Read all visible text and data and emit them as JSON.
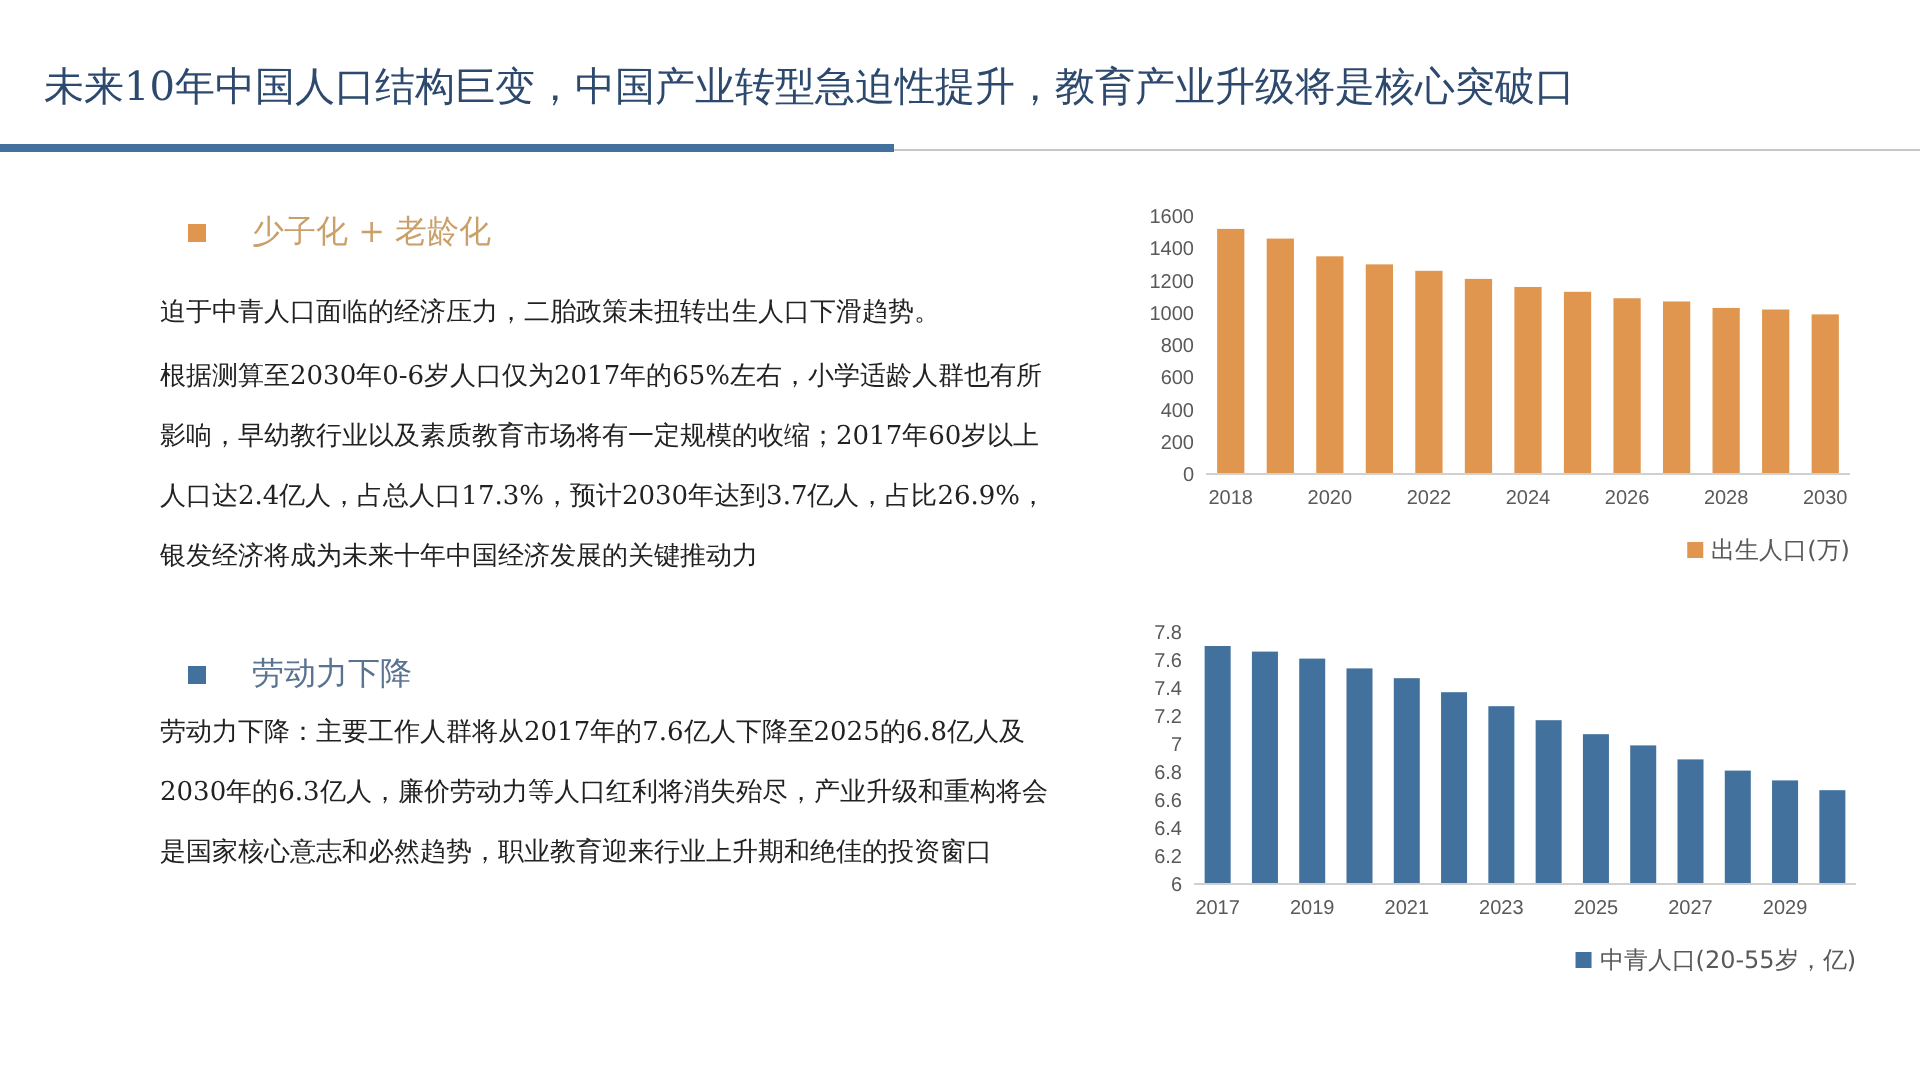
{
  "chart_data": [
    {
      "type": "bar",
      "title": "未来10年中国人口结构巨变，中国产业转型急迫性提升，教育产业升级将是核心突破口",
      "annotations": [
        "少子化 + 老龄化",
        "迫于中青人口面临的经济压力，二胎政策未扭转出生人口下滑趋势。",
        "根据测算至2030年0-6岁人口仅为2017年的65%左右，小学适龄人群也有所影响，早幼教行业以及素质教育市场将有一定规模的收缩；2017年60岁以上人口达2.4亿人，占总人口17.3%，预计2030年达到3.7亿人，占比26.9%，银发经济将成为未来十年中国经济发展的关键推动力"
      ],
      "categories": [
        "2018",
        null,
        "2020",
        null,
        "2022",
        null,
        "2024",
        null,
        "2026",
        null,
        "2028",
        null,
        "2030"
      ],
      "series": [
        {
          "name": "出生人口(万)",
          "color": "#e0964e",
          "values": [
            1520,
            1460,
            1350,
            1300,
            1260,
            1210,
            1160,
            1130,
            1090,
            1070,
            1030,
            1020,
            990
          ]
        }
      ],
      "ylim": [
        0,
        1600
      ],
      "yticks": [
        0,
        200,
        400,
        600,
        800,
        1000,
        1200,
        1400,
        1600
      ],
      "legend": "bottom right"
    },
    {
      "type": "bar",
      "annotations": [
        "劳动力下降",
        "劳动力下降：主要工作人群将从2017年的7.6亿人下降至2025的6.8亿人及2030年的6.3亿人，廉价劳动力等人口红利将消失殆尽，产业升级和重构将会是国家核心意志和必然趋势，职业教育迎来行业上升期和绝佳的投资窗口"
      ],
      "categories": [
        "2017",
        null,
        "2019",
        null,
        "2021",
        null,
        "2023",
        null,
        "2025",
        null,
        "2027",
        null,
        "2029",
        null
      ],
      "series": [
        {
          "name": "中青人口(20-55岁，亿)",
          "color": "#41719c",
          "values": [
            7.7,
            7.66,
            7.61,
            7.54,
            7.47,
            7.37,
            7.27,
            7.17,
            7.07,
            6.99,
            6.89,
            6.81,
            6.74,
            6.67
          ]
        }
      ],
      "ylim": [
        6,
        7.8
      ],
      "yticks": [
        6,
        6.2,
        6.4,
        6.6,
        6.8,
        7,
        7.2,
        7.4,
        7.6,
        7.8
      ],
      "legend": "bottom right"
    }
  ]
}
